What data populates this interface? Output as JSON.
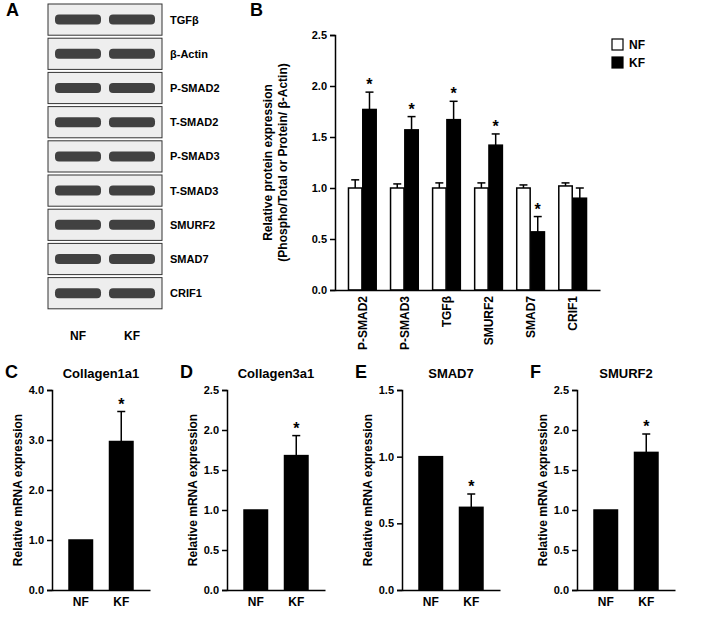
{
  "blot": {
    "panel_label": "A",
    "rows": [
      "TGFβ",
      "β-Actin",
      "P-SMAD2",
      "T-SMAD2",
      "P-SMAD3",
      "T-SMAD3",
      "SMURF2",
      "SMAD7",
      "CRIF1"
    ],
    "lanes": [
      "NF",
      "KF"
    ]
  },
  "chart_data": [
    {
      "panel_label": "B",
      "type": "bar",
      "ylabel": [
        "Relative protein expression",
        "(Phospho/Total or Protein/ β-Actin)"
      ],
      "categories": [
        "P-SMAD2",
        "P-SMAD3",
        "TGFβ",
        "SMURF2",
        "SMAD7",
        "CRIF1"
      ],
      "series": [
        {
          "name": "NF",
          "color": "#ffffff",
          "values": [
            1.0,
            1.0,
            1.0,
            1.0,
            1.0,
            1.02
          ],
          "errors": [
            0.08,
            0.04,
            0.05,
            0.05,
            0.03,
            0.03
          ]
        },
        {
          "name": "KF",
          "color": "#000000",
          "values": [
            1.77,
            1.57,
            1.67,
            1.42,
            0.57,
            0.9
          ],
          "errors": [
            0.17,
            0.13,
            0.18,
            0.11,
            0.15,
            0.1
          ]
        }
      ],
      "ylim": [
        0,
        2.5
      ],
      "yticks": [
        {
          "value": 0,
          "label": "0.0"
        },
        {
          "value": 0.5,
          "label": "0.5"
        },
        {
          "value": 1,
          "label": "1.0"
        },
        {
          "value": 1.5,
          "label": "1.5"
        },
        {
          "value": 2,
          "label": "2.0"
        },
        {
          "value": 2.5,
          "label": "2.5"
        }
      ],
      "legend": "top-right",
      "annotations": [
        {
          "text": "*",
          "category": 0,
          "series": 1
        },
        {
          "text": "*",
          "category": 1,
          "series": 1
        },
        {
          "text": "*",
          "category": 2,
          "series": 1
        },
        {
          "text": "*",
          "category": 3,
          "series": 1
        },
        {
          "text": "*",
          "category": 4,
          "series": 1
        }
      ]
    },
    {
      "panel_label": "C",
      "type": "bar",
      "title": "Collagen1a1",
      "ylabel": [
        "Relative mRNA expression"
      ],
      "categories": [
        "NF",
        "KF"
      ],
      "values": [
        1,
        2.97
      ],
      "errors": [
        null,
        0.6
      ],
      "color": "#000000",
      "ylim": [
        0,
        4
      ],
      "yticks": [
        {
          "value": 0,
          "label": "0.0"
        },
        {
          "value": 1,
          "label": "1.0"
        },
        {
          "value": 2,
          "label": "2.0"
        },
        {
          "value": 3,
          "label": "3.0"
        },
        {
          "value": 4,
          "label": "4.0"
        }
      ],
      "annotations": [
        {
          "text": "*",
          "category": 1
        }
      ]
    },
    {
      "panel_label": "D",
      "type": "bar",
      "title": "Collagen3a1",
      "ylabel": [
        "Relative mRNA expression"
      ],
      "categories": [
        "NF",
        "KF"
      ],
      "values": [
        1,
        1.68
      ],
      "errors": [
        null,
        0.25
      ],
      "color": "#000000",
      "ylim": [
        0,
        2.5
      ],
      "yticks": [
        {
          "value": 0,
          "label": "0.0"
        },
        {
          "value": 0.5,
          "label": "0.5"
        },
        {
          "value": 1,
          "label": "1.0"
        },
        {
          "value": 1.5,
          "label": "1.5"
        },
        {
          "value": 2,
          "label": "2.0"
        },
        {
          "value": 2.5,
          "label": "2.5"
        }
      ],
      "annotations": [
        {
          "text": "*",
          "category": 1
        }
      ]
    },
    {
      "panel_label": "E",
      "type": "bar",
      "title": "SMAD7",
      "ylabel": [
        "Relative mRNA expression"
      ],
      "categories": [
        "NF",
        "KF"
      ],
      "values": [
        1,
        0.62
      ],
      "errors": [
        null,
        0.1
      ],
      "color": "#000000",
      "ylim": [
        0,
        1.5
      ],
      "yticks": [
        {
          "value": 0,
          "label": "0.0"
        },
        {
          "value": 0.5,
          "label": "0.5"
        },
        {
          "value": 1,
          "label": "1.0"
        },
        {
          "value": 1.5,
          "label": "1.5"
        }
      ],
      "annotations": [
        {
          "text": "*",
          "category": 1
        }
      ]
    },
    {
      "panel_label": "F",
      "type": "bar",
      "title": "SMURF2",
      "ylabel": [
        "Relative mRNA expression"
      ],
      "categories": [
        "NF",
        "KF"
      ],
      "values": [
        1,
        1.72
      ],
      "errors": [
        null,
        0.23
      ],
      "color": "#000000",
      "ylim": [
        0,
        2.5
      ],
      "yticks": [
        {
          "value": 0,
          "label": "0.0"
        },
        {
          "value": 0.5,
          "label": "0.5"
        },
        {
          "value": 1,
          "label": "1.0"
        },
        {
          "value": 1.5,
          "label": "1.5"
        },
        {
          "value": 2,
          "label": "2.0"
        },
        {
          "value": 2.5,
          "label": "2.5"
        }
      ],
      "annotations": [
        {
          "text": "*",
          "category": 1
        }
      ]
    }
  ]
}
